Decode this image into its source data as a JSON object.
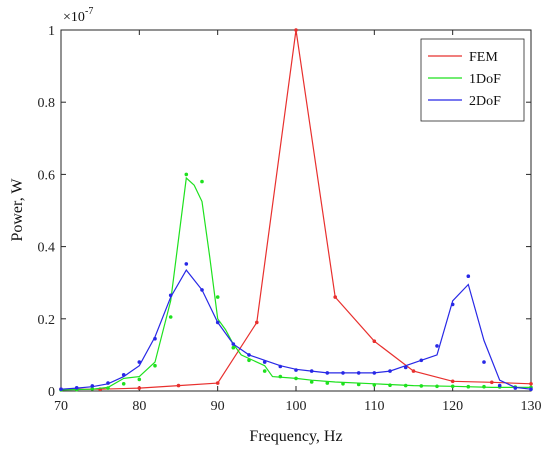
{
  "chart_data": {
    "type": "line",
    "title": "",
    "xlabel": "Frequency, Hz",
    "ylabel": "Power, W",
    "y_scale_multiplier": "×10",
    "y_scale_exponent": "-7",
    "xlim": [
      70,
      130
    ],
    "ylim": [
      0,
      1
    ],
    "xticks": [
      "70",
      "80",
      "90",
      "100",
      "110",
      "120",
      "130"
    ],
    "yticks": [
      "0",
      "0.2",
      "0.4",
      "0.6",
      "0.8",
      "1"
    ],
    "grid": false,
    "legend_position": "top-right",
    "series": [
      {
        "name": "FEM",
        "color": "#e8302e",
        "style": "line-with-dots",
        "line": [
          [
            70,
            0.005
          ],
          [
            75,
            0.005
          ],
          [
            80,
            0.008
          ],
          [
            85,
            0.015
          ],
          [
            90,
            0.022
          ],
          [
            95,
            0.19
          ],
          [
            100,
            1.0
          ],
          [
            105,
            0.26
          ],
          [
            110,
            0.138
          ],
          [
            115,
            0.055
          ],
          [
            120,
            0.027
          ],
          [
            125,
            0.024
          ],
          [
            130,
            0.02
          ]
        ],
        "points": [
          [
            70,
            0.005
          ],
          [
            75,
            0.005
          ],
          [
            80,
            0.008
          ],
          [
            85,
            0.015
          ],
          [
            90,
            0.022
          ],
          [
            95,
            0.19
          ],
          [
            100,
            1.0
          ],
          [
            105,
            0.26
          ],
          [
            110,
            0.138
          ],
          [
            115,
            0.055
          ],
          [
            120,
            0.027
          ],
          [
            125,
            0.024
          ],
          [
            130,
            0.02
          ]
        ]
      },
      {
        "name": "1DoF",
        "color": "#1ee11e",
        "style": "line-and-scatter",
        "line": [
          [
            70,
            0.003
          ],
          [
            74,
            0.005
          ],
          [
            76,
            0.01
          ],
          [
            78,
            0.035
          ],
          [
            80,
            0.04
          ],
          [
            82,
            0.08
          ],
          [
            84,
            0.25
          ],
          [
            86,
            0.59
          ],
          [
            87,
            0.57
          ],
          [
            88,
            0.525
          ],
          [
            89,
            0.37
          ],
          [
            90,
            0.2
          ],
          [
            91,
            0.17
          ],
          [
            92,
            0.13
          ],
          [
            93,
            0.1
          ],
          [
            94,
            0.09
          ],
          [
            96,
            0.07
          ],
          [
            97,
            0.04
          ],
          [
            100,
            0.035
          ],
          [
            102,
            0.03
          ],
          [
            105,
            0.025
          ],
          [
            110,
            0.02
          ],
          [
            115,
            0.015
          ],
          [
            120,
            0.013
          ],
          [
            125,
            0.01
          ],
          [
            130,
            0.01
          ]
        ],
        "points": [
          [
            70,
            0.003
          ],
          [
            72,
            0.004
          ],
          [
            74,
            0.006
          ],
          [
            76,
            0.008
          ],
          [
            78,
            0.02
          ],
          [
            80,
            0.032
          ],
          [
            82,
            0.07
          ],
          [
            84,
            0.205
          ],
          [
            86,
            0.6
          ],
          [
            88,
            0.58
          ],
          [
            90,
            0.26
          ],
          [
            92,
            0.12
          ],
          [
            94,
            0.085
          ],
          [
            96,
            0.055
          ],
          [
            98,
            0.04
          ],
          [
            100,
            0.035
          ],
          [
            102,
            0.025
          ],
          [
            104,
            0.022
          ],
          [
            106,
            0.02
          ],
          [
            108,
            0.018
          ],
          [
            110,
            0.017
          ],
          [
            112,
            0.016
          ],
          [
            114,
            0.015
          ],
          [
            116,
            0.014
          ],
          [
            118,
            0.013
          ],
          [
            120,
            0.013
          ],
          [
            122,
            0.012
          ],
          [
            124,
            0.012
          ],
          [
            126,
            0.011
          ],
          [
            128,
            0.011
          ],
          [
            130,
            0.01
          ]
        ]
      },
      {
        "name": "2DoF",
        "color": "#2828e6",
        "style": "line-and-scatter",
        "line": [
          [
            70,
            0.005
          ],
          [
            72,
            0.008
          ],
          [
            74,
            0.012
          ],
          [
            76,
            0.02
          ],
          [
            78,
            0.04
          ],
          [
            80,
            0.07
          ],
          [
            82,
            0.15
          ],
          [
            84,
            0.26
          ],
          [
            86,
            0.335
          ],
          [
            88,
            0.28
          ],
          [
            90,
            0.19
          ],
          [
            92,
            0.13
          ],
          [
            94,
            0.1
          ],
          [
            96,
            0.085
          ],
          [
            98,
            0.07
          ],
          [
            100,
            0.06
          ],
          [
            102,
            0.055
          ],
          [
            104,
            0.05
          ],
          [
            106,
            0.05
          ],
          [
            108,
            0.05
          ],
          [
            110,
            0.05
          ],
          [
            112,
            0.055
          ],
          [
            114,
            0.07
          ],
          [
            116,
            0.085
          ],
          [
            118,
            0.1
          ],
          [
            120,
            0.25
          ],
          [
            122,
            0.295
          ],
          [
            124,
            0.14
          ],
          [
            126,
            0.03
          ],
          [
            128,
            0.01
          ],
          [
            130,
            0.005
          ]
        ],
        "points": [
          [
            70,
            0.005
          ],
          [
            72,
            0.009
          ],
          [
            74,
            0.014
          ],
          [
            76,
            0.022
          ],
          [
            78,
            0.045
          ],
          [
            80,
            0.08
          ],
          [
            82,
            0.145
          ],
          [
            84,
            0.265
          ],
          [
            86,
            0.352
          ],
          [
            88,
            0.28
          ],
          [
            90,
            0.19
          ],
          [
            92,
            0.13
          ],
          [
            94,
            0.1
          ],
          [
            96,
            0.08
          ],
          [
            98,
            0.068
          ],
          [
            100,
            0.058
          ],
          [
            102,
            0.055
          ],
          [
            104,
            0.05
          ],
          [
            106,
            0.05
          ],
          [
            108,
            0.05
          ],
          [
            110,
            0.05
          ],
          [
            112,
            0.055
          ],
          [
            114,
            0.065
          ],
          [
            116,
            0.085
          ],
          [
            118,
            0.125
          ],
          [
            120,
            0.24
          ],
          [
            122,
            0.318
          ],
          [
            124,
            0.08
          ],
          [
            126,
            0.015
          ],
          [
            128,
            0.008
          ],
          [
            130,
            0.005
          ]
        ]
      }
    ]
  }
}
